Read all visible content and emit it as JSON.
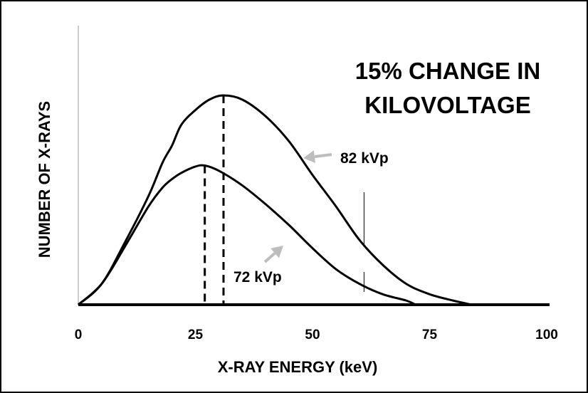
{
  "chart_data": {
    "type": "line",
    "title_lines": [
      "15% CHANGE IN",
      "KILOVOLTAGE"
    ],
    "xlabel": "X-RAY ENERGY (keV)",
    "ylabel": "NUMBER OF X-RAYS",
    "xlim": [
      0,
      100
    ],
    "ylim": [
      0,
      100
    ],
    "xticks": [
      0,
      25,
      50,
      75,
      100
    ],
    "grid": false,
    "legend": "none",
    "series": [
      {
        "name": "82 kVp",
        "peak_x": 31,
        "points": [
          [
            0,
            0
          ],
          [
            5,
            10
          ],
          [
            10,
            30
          ],
          [
            15,
            52
          ],
          [
            18,
            68
          ],
          [
            20,
            76
          ],
          [
            22,
            86
          ],
          [
            25,
            93
          ],
          [
            28,
            98
          ],
          [
            31,
            100
          ],
          [
            35,
            98
          ],
          [
            40,
            90
          ],
          [
            45,
            78
          ],
          [
            50,
            62
          ],
          [
            55,
            47
          ],
          [
            60,
            31
          ],
          [
            65,
            19
          ],
          [
            70,
            10
          ],
          [
            75,
            5
          ],
          [
            80,
            2
          ],
          [
            84,
            0
          ]
        ]
      },
      {
        "name": "72 kVp",
        "peak_x": 27,
        "points": [
          [
            0,
            0
          ],
          [
            5,
            10
          ],
          [
            10,
            28
          ],
          [
            15,
            47
          ],
          [
            18,
            56
          ],
          [
            20,
            60
          ],
          [
            22,
            63
          ],
          [
            25,
            66
          ],
          [
            27,
            66.5
          ],
          [
            30,
            64
          ],
          [
            35,
            57
          ],
          [
            40,
            48
          ],
          [
            45,
            38
          ],
          [
            50,
            27
          ],
          [
            55,
            17
          ],
          [
            60,
            10
          ],
          [
            65,
            5
          ],
          [
            70,
            2
          ],
          [
            72,
            0
          ]
        ]
      }
    ],
    "annotations": [
      {
        "text": "82 kVp",
        "target": "82 kVp",
        "arrow_color": "#bdbdbd"
      },
      {
        "text": "72 kVp",
        "target": "72 kVp",
        "arrow_color": "#bdbdbd"
      }
    ],
    "vertical_marker_x": 61,
    "colors": {
      "line": "#000000",
      "arrow": "#bdbdbd"
    }
  }
}
